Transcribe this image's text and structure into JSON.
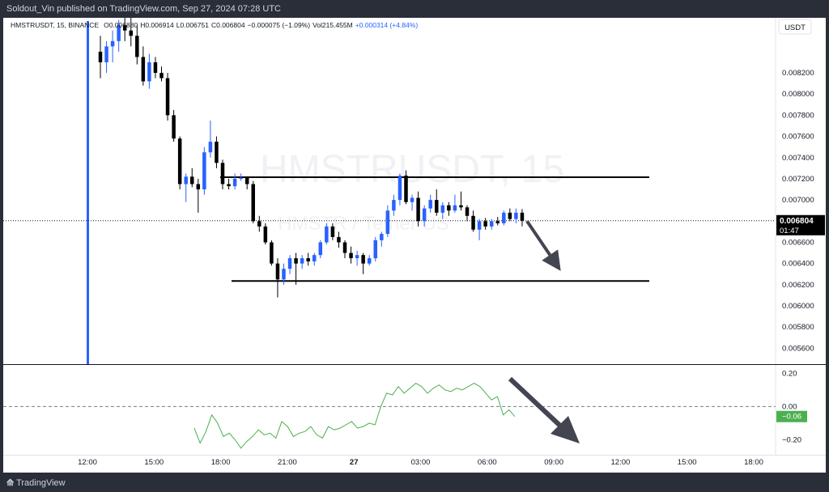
{
  "header": {
    "published": "Soldout_Vin published on TradingView.com, Sep 27, 2024 07:28 UTC"
  },
  "legend": {
    "symbol": "HMSTRUSDT, 15, BINANCE",
    "open": "O0.006880",
    "high": "H0.006914",
    "low": "L0.006751",
    "close": "C0.006804",
    "change": "−0.000075 (−1.09%)",
    "volume": "Vol215.455M",
    "vol_change": "+0.000314 (+4.84%)"
  },
  "currency_badge": "USDT",
  "watermark": {
    "symbol": "HMSTRUSDT, 15",
    "name": "HMSTR / Tether US"
  },
  "price_tag": {
    "value": "0.006804",
    "countdown": "01:47"
  },
  "osc_tag": "−0.06",
  "footer": {
    "logo_mark": "⟰",
    "logo_text": "TradingView"
  },
  "colors": {
    "up": "#2962ff",
    "down": "#000000",
    "oscillator": "#4caf50",
    "arrow": "#434651",
    "text": "#131722",
    "line": "#000000"
  },
  "chart_data": [
    {
      "type": "candlestick",
      "symbol": "HMSTRUSDT",
      "interval": "15",
      "exchange": "BINANCE",
      "y_ticks": [
        "0.008200",
        "0.008000",
        "0.007800",
        "0.007600",
        "0.007400",
        "0.007200",
        "0.007000",
        "0.006800",
        "0.006600",
        "0.006400",
        "0.006200",
        "0.006000",
        "0.005800",
        "0.005600"
      ],
      "x_ticks": [
        "12:00",
        "15:00",
        "18:00",
        "21:00",
        "27",
        "03:00",
        "06:00",
        "09:00",
        "12:00",
        "15:00",
        "18:00"
      ],
      "ylim": [
        0.00545,
        0.00872
      ],
      "horizontal_levels": [
        0.007215,
        0.006235
      ],
      "current_price": 0.006804,
      "projected_arrow": {
        "from": 0.0068,
        "to": 0.00636
      },
      "candles": [
        {
          "o": 0.0084,
          "h": 0.00855,
          "l": 0.00815,
          "c": 0.0083
        },
        {
          "o": 0.0083,
          "h": 0.0085,
          "l": 0.0082,
          "c": 0.00845
        },
        {
          "o": 0.00845,
          "h": 0.0086,
          "l": 0.0083,
          "c": 0.0085
        },
        {
          "o": 0.0085,
          "h": 0.0087,
          "l": 0.0084,
          "c": 0.00865
        },
        {
          "o": 0.00865,
          "h": 0.00872,
          "l": 0.0085,
          "c": 0.0086
        },
        {
          "o": 0.0086,
          "h": 0.00872,
          "l": 0.00845,
          "c": 0.00855
        },
        {
          "o": 0.00855,
          "h": 0.00865,
          "l": 0.00828,
          "c": 0.00835
        },
        {
          "o": 0.00835,
          "h": 0.00845,
          "l": 0.00808,
          "c": 0.00812
        },
        {
          "o": 0.00812,
          "h": 0.00838,
          "l": 0.00805,
          "c": 0.0083
        },
        {
          "o": 0.0083,
          "h": 0.00835,
          "l": 0.00815,
          "c": 0.0082
        },
        {
          "o": 0.0082,
          "h": 0.00826,
          "l": 0.00812,
          "c": 0.00815
        },
        {
          "o": 0.00815,
          "h": 0.0082,
          "l": 0.00775,
          "c": 0.0078
        },
        {
          "o": 0.0078,
          "h": 0.00785,
          "l": 0.00755,
          "c": 0.00758
        },
        {
          "o": 0.00758,
          "h": 0.0076,
          "l": 0.0071,
          "c": 0.00715
        },
        {
          "o": 0.00715,
          "h": 0.00725,
          "l": 0.00698,
          "c": 0.00722
        },
        {
          "o": 0.00722,
          "h": 0.0073,
          "l": 0.00712,
          "c": 0.00715
        },
        {
          "o": 0.00715,
          "h": 0.0072,
          "l": 0.00688,
          "c": 0.0071
        },
        {
          "o": 0.0071,
          "h": 0.0075,
          "l": 0.00705,
          "c": 0.00745
        },
        {
          "o": 0.00745,
          "h": 0.00775,
          "l": 0.0074,
          "c": 0.00755
        },
        {
          "o": 0.00755,
          "h": 0.0076,
          "l": 0.0073,
          "c": 0.00735
        },
        {
          "o": 0.00735,
          "h": 0.00738,
          "l": 0.0071,
          "c": 0.00715
        },
        {
          "o": 0.00715,
          "h": 0.0072,
          "l": 0.0071,
          "c": 0.00713
        },
        {
          "o": 0.00713,
          "h": 0.00725,
          "l": 0.0071,
          "c": 0.0072
        },
        {
          "o": 0.0072,
          "h": 0.00725,
          "l": 0.00718,
          "c": 0.00721
        },
        {
          "o": 0.00721,
          "h": 0.00722,
          "l": 0.0071,
          "c": 0.00715
        },
        {
          "o": 0.00715,
          "h": 0.00718,
          "l": 0.00678,
          "c": 0.0068
        },
        {
          "o": 0.0068,
          "h": 0.00685,
          "l": 0.0067,
          "c": 0.00675
        },
        {
          "o": 0.00675,
          "h": 0.00678,
          "l": 0.00658,
          "c": 0.0066
        },
        {
          "o": 0.0066,
          "h": 0.00662,
          "l": 0.00638,
          "c": 0.0064
        },
        {
          "o": 0.0064,
          "h": 0.00645,
          "l": 0.00608,
          "c": 0.00625
        },
        {
          "o": 0.00625,
          "h": 0.0064,
          "l": 0.0062,
          "c": 0.00635
        },
        {
          "o": 0.00635,
          "h": 0.00648,
          "l": 0.0063,
          "c": 0.00645
        },
        {
          "o": 0.00645,
          "h": 0.0065,
          "l": 0.0062,
          "c": 0.0064
        },
        {
          "o": 0.0064,
          "h": 0.00648,
          "l": 0.00635,
          "c": 0.00645
        },
        {
          "o": 0.00645,
          "h": 0.0065,
          "l": 0.00638,
          "c": 0.00642
        },
        {
          "o": 0.00642,
          "h": 0.0065,
          "l": 0.00638,
          "c": 0.00648
        },
        {
          "o": 0.00648,
          "h": 0.00662,
          "l": 0.00645,
          "c": 0.0066
        },
        {
          "o": 0.0066,
          "h": 0.00678,
          "l": 0.00658,
          "c": 0.00675
        },
        {
          "o": 0.00675,
          "h": 0.00678,
          "l": 0.00662,
          "c": 0.00665
        },
        {
          "o": 0.00665,
          "h": 0.0067,
          "l": 0.00655,
          "c": 0.0066
        },
        {
          "o": 0.0066,
          "h": 0.00662,
          "l": 0.00645,
          "c": 0.0065
        },
        {
          "o": 0.0065,
          "h": 0.00656,
          "l": 0.0064,
          "c": 0.00645
        },
        {
          "o": 0.00645,
          "h": 0.00652,
          "l": 0.00638,
          "c": 0.00648
        },
        {
          "o": 0.00648,
          "h": 0.0065,
          "l": 0.0063,
          "c": 0.0064
        },
        {
          "o": 0.0064,
          "h": 0.00648,
          "l": 0.00638,
          "c": 0.00645
        },
        {
          "o": 0.00645,
          "h": 0.00665,
          "l": 0.00642,
          "c": 0.00662
        },
        {
          "o": 0.00662,
          "h": 0.0067,
          "l": 0.00656,
          "c": 0.00668
        },
        {
          "o": 0.00668,
          "h": 0.00695,
          "l": 0.00665,
          "c": 0.0069
        },
        {
          "o": 0.0069,
          "h": 0.00705,
          "l": 0.00685,
          "c": 0.007
        },
        {
          "o": 0.007,
          "h": 0.00725,
          "l": 0.00695,
          "c": 0.00723
        },
        {
          "o": 0.00723,
          "h": 0.00728,
          "l": 0.00696,
          "c": 0.00698
        },
        {
          "o": 0.00698,
          "h": 0.00705,
          "l": 0.0069,
          "c": 0.00702
        },
        {
          "o": 0.00702,
          "h": 0.00708,
          "l": 0.00675,
          "c": 0.0068
        },
        {
          "o": 0.0068,
          "h": 0.00695,
          "l": 0.00675,
          "c": 0.00692
        },
        {
          "o": 0.00692,
          "h": 0.00705,
          "l": 0.00688,
          "c": 0.007
        },
        {
          "o": 0.007,
          "h": 0.0071,
          "l": 0.00685,
          "c": 0.00688
        },
        {
          "o": 0.00688,
          "h": 0.00698,
          "l": 0.00682,
          "c": 0.00695
        },
        {
          "o": 0.00695,
          "h": 0.00698,
          "l": 0.00685,
          "c": 0.0069
        },
        {
          "o": 0.0069,
          "h": 0.00705,
          "l": 0.00688,
          "c": 0.00695
        },
        {
          "o": 0.00695,
          "h": 0.00708,
          "l": 0.0069,
          "c": 0.00693
        },
        {
          "o": 0.00693,
          "h": 0.00695,
          "l": 0.0068,
          "c": 0.00685
        },
        {
          "o": 0.00685,
          "h": 0.0069,
          "l": 0.0067,
          "c": 0.00672
        },
        {
          "o": 0.00672,
          "h": 0.00682,
          "l": 0.00662,
          "c": 0.0068
        },
        {
          "o": 0.0068,
          "h": 0.00683,
          "l": 0.00672,
          "c": 0.00675
        },
        {
          "o": 0.00675,
          "h": 0.00682,
          "l": 0.00672,
          "c": 0.0068
        },
        {
          "o": 0.0068,
          "h": 0.00684,
          "l": 0.00676,
          "c": 0.00678
        },
        {
          "o": 0.00678,
          "h": 0.0069,
          "l": 0.00676,
          "c": 0.00688
        },
        {
          "o": 0.00688,
          "h": 0.00692,
          "l": 0.0068,
          "c": 0.00682
        },
        {
          "o": 0.00682,
          "h": 0.00692,
          "l": 0.00678,
          "c": 0.00688
        },
        {
          "o": 0.00688,
          "h": 0.006914,
          "l": 0.006751,
          "c": 0.006804
        }
      ]
    },
    {
      "type": "line",
      "y_ticks": [
        "0.20",
        "0.00",
        "−0.20"
      ],
      "ylim": [
        -0.29,
        0.25
      ],
      "zero_line": 0.0,
      "current_value": -0.06,
      "values": [
        -0.13,
        -0.22,
        -0.15,
        -0.05,
        -0.1,
        -0.18,
        -0.16,
        -0.2,
        -0.25,
        -0.21,
        -0.18,
        -0.14,
        -0.17,
        -0.16,
        -0.19,
        -0.09,
        -0.12,
        -0.18,
        -0.16,
        -0.15,
        -0.12,
        -0.17,
        -0.19,
        -0.12,
        -0.14,
        -0.13,
        -0.11,
        -0.09,
        -0.13,
        -0.12,
        -0.1,
        -0.11,
        0.0,
        0.08,
        0.07,
        0.12,
        0.08,
        0.11,
        0.14,
        0.12,
        0.08,
        0.11,
        0.13,
        0.1,
        0.09,
        0.11,
        0.1,
        0.12,
        0.14,
        0.12,
        0.08,
        0.04,
        0.06,
        -0.05,
        -0.02,
        -0.06
      ]
    }
  ]
}
